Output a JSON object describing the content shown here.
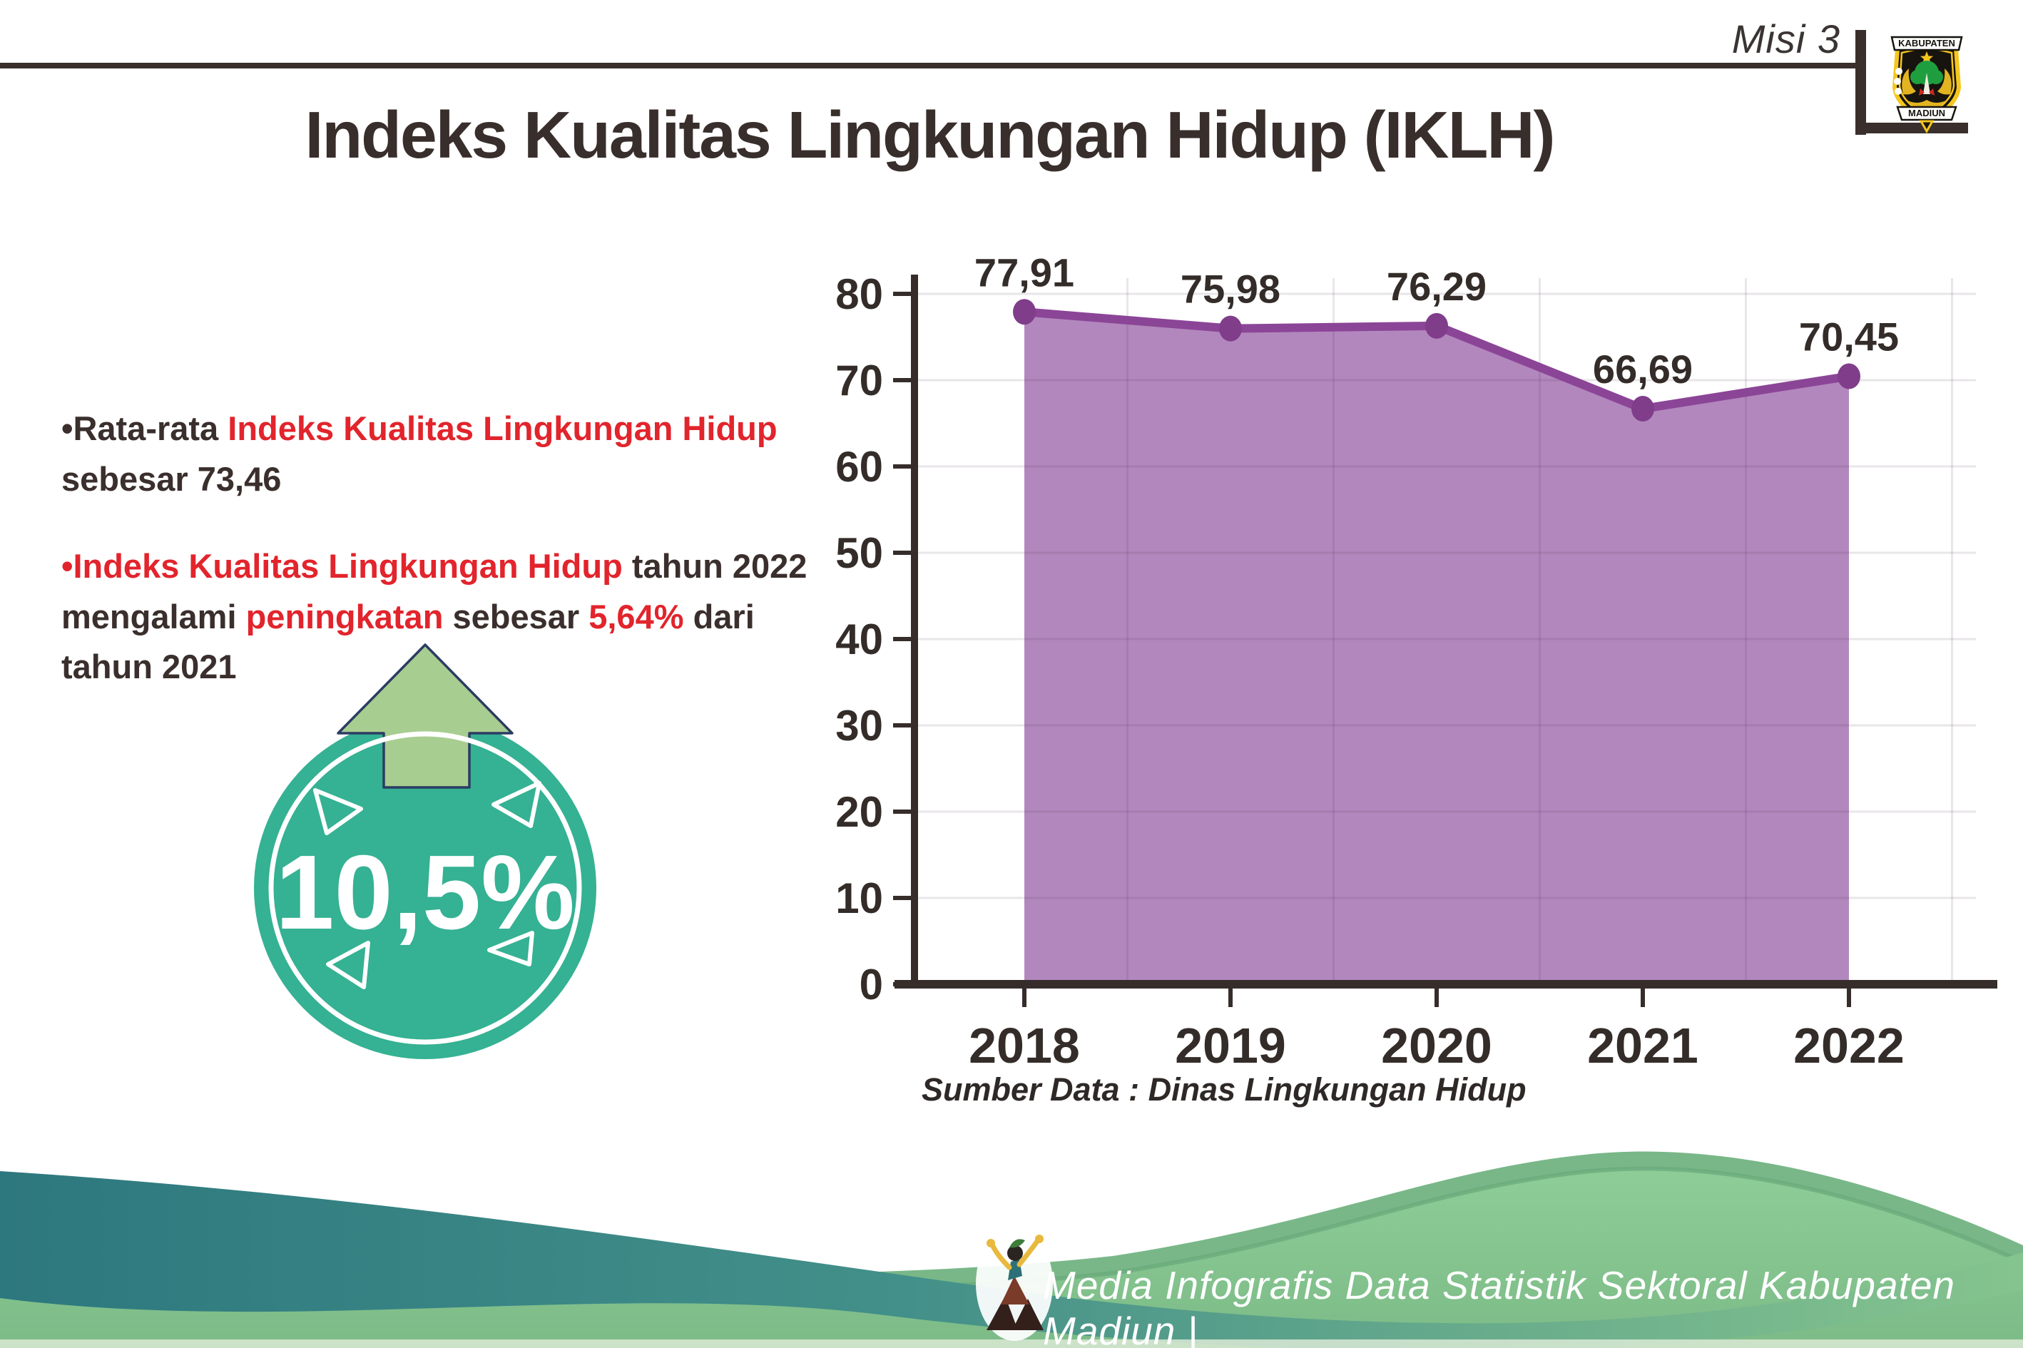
{
  "header": {
    "misi": "Misi 3",
    "logo": {
      "top": "KABUPATEN",
      "bottom": "MADIUN"
    }
  },
  "title": "Indeks Kualitas Lingkungan Hidup (IKLH)",
  "insights": {
    "bullet1": {
      "seg1": "•Rata-rata ",
      "seg2": "Indeks Kualitas Lingkungan Hidup",
      "seg3": " sebesar 73,46"
    },
    "bullet2": {
      "seg1": "•Indeks Kualitas Lingkungan Hidup",
      "seg2": " tahun 2022 mengalami ",
      "seg3": "peningkatan",
      "seg4": " sebesar ",
      "seg5": "5,64%",
      "seg6": " dari tahun 2021"
    }
  },
  "badge": {
    "percent": "10,5%"
  },
  "chart_data": {
    "type": "area",
    "categories": [
      "2018",
      "2019",
      "2020",
      "2021",
      "2022"
    ],
    "values": [
      77.91,
      75.98,
      76.29,
      66.69,
      70.45
    ],
    "value_labels": [
      "77,91",
      "75,98",
      "76,29",
      "66,69",
      "70,45"
    ],
    "title": "",
    "xlabel": "",
    "ylabel": "",
    "ylim": [
      0,
      80
    ],
    "ytick_step": 10,
    "grid": true,
    "legend": "none",
    "source": "Sumber Data : Dinas Lingkungan Hidup",
    "colors": {
      "area": "#b287bd",
      "line": "#8b4597",
      "marker": "#7f3d8a",
      "axis": "#362d2b",
      "grid": "rgba(70,50,70,0.12)",
      "label": "#332c29"
    }
  },
  "footer": {
    "text": "Media Infografis Data Statistik Sektoral Kabupaten Madiun |"
  },
  "colors": {
    "red": "#e2242c",
    "dark": "#3a2f2c",
    "teal": "#35b193",
    "arrowGreen": "#a8cd90",
    "footerTeal": "#2d787e",
    "footerGreen": "#85c48e"
  }
}
